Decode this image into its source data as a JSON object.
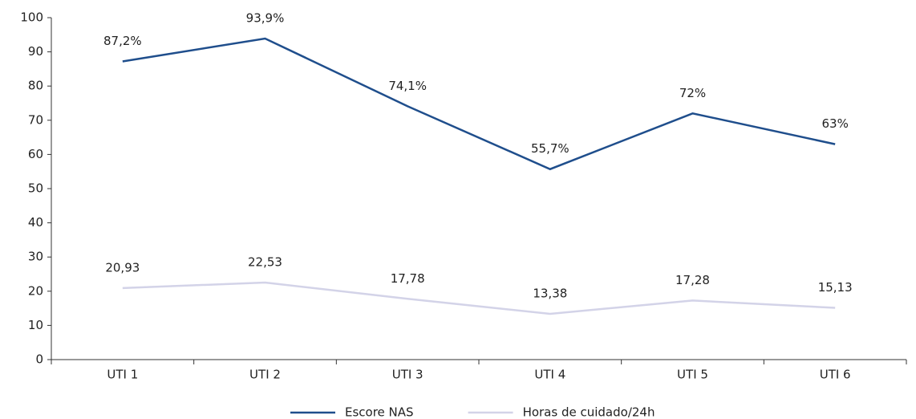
{
  "chart_data": {
    "type": "line",
    "categories": [
      "UTI 1",
      "UTI 2",
      "UTI 3",
      "UTI 4",
      "UTI 5",
      "UTI 6"
    ],
    "series": [
      {
        "name": "Escore NAS",
        "color": "#1f4e8c",
        "values": [
          87.2,
          93.9,
          74.1,
          55.7,
          72,
          63
        ],
        "value_labels": [
          "87,2%",
          "93,9%",
          "74,1%",
          "55,7%",
          "72%",
          "63%"
        ]
      },
      {
        "name": "Horas de cuidado/24h",
        "color": "#d3d3e8",
        "values": [
          20.93,
          22.53,
          17.78,
          13.38,
          17.28,
          15.13
        ],
        "value_labels": [
          "20,93",
          "22,53",
          "17,78",
          "13,38",
          "17,28",
          "15,13"
        ]
      }
    ],
    "ylim": [
      0,
      100
    ],
    "yticks": [
      0,
      10,
      20,
      30,
      40,
      50,
      60,
      70,
      80,
      90,
      100
    ],
    "legend": "bottom"
  }
}
